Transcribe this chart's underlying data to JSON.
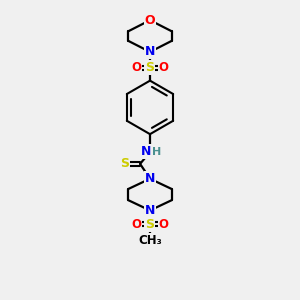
{
  "background_color": "#f0f0f0",
  "bond_color": "#000000",
  "atom_colors": {
    "O": "#ff0000",
    "N": "#0000ee",
    "S": "#cccc00",
    "H": "#4a9090",
    "C": "#000000"
  },
  "figsize": [
    3.0,
    3.0
  ],
  "dpi": 100
}
